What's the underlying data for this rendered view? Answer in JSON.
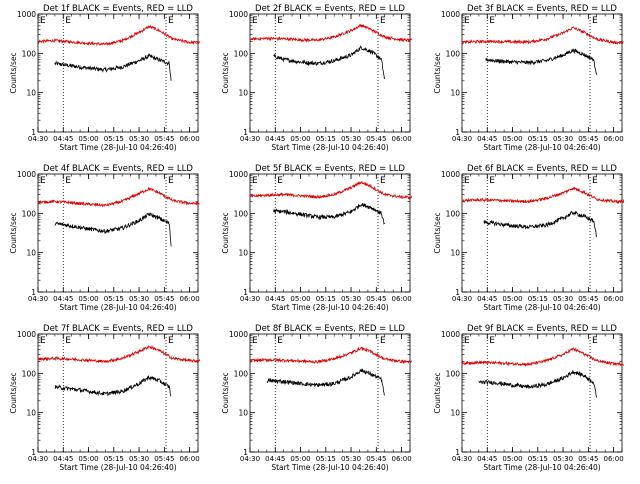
{
  "figure": {
    "colors": {
      "background": "#ffffff",
      "axes": "#000000",
      "events": "#000000",
      "lld": "#dd0000"
    },
    "marker_label": "E"
  },
  "chart_data": [
    {
      "type": "line",
      "title": "Det 1f BLACK = Events, RED = LLD",
      "xlabel": "Start Time (28-Jul-10 04:26:40)",
      "ylabel": "Counts/sec",
      "yscale": "log",
      "ylim": [
        1,
        1000
      ],
      "yticks": [
        1,
        10,
        100,
        1000
      ],
      "xticks": [
        "04:30",
        "04:45",
        "05:00",
        "05:15",
        "05:30",
        "05:45",
        "06:00"
      ],
      "markers": [
        "04:45",
        "05:46"
      ],
      "series": [
        {
          "name": "BLACK = Events",
          "color": "#000000",
          "x": [
            "04:40",
            "04:50",
            "05:00",
            "05:10",
            "05:20",
            "05:30",
            "05:36",
            "05:42",
            "05:48",
            "05:49"
          ],
          "y": [
            55,
            48,
            42,
            38,
            45,
            65,
            85,
            68,
            55,
            20
          ]
        },
        {
          "name": "RED = LLD",
          "color": "#dd0000",
          "x": [
            "04:30",
            "04:40",
            "04:50",
            "05:00",
            "05:10",
            "05:20",
            "05:30",
            "05:36",
            "05:42",
            "05:50",
            "06:00",
            "06:06"
          ],
          "y": [
            200,
            210,
            195,
            180,
            170,
            210,
            340,
            480,
            380,
            230,
            190,
            185
          ]
        }
      ]
    },
    {
      "type": "line",
      "title": "Det 2f BLACK = Events, RED = LLD",
      "xlabel": "Start Time (28-Jul-10 04:26:40)",
      "ylabel": "Counts/sec",
      "yscale": "log",
      "ylim": [
        1,
        1000
      ],
      "yticks": [
        1,
        10,
        100,
        1000
      ],
      "xticks": [
        "04:30",
        "04:45",
        "05:00",
        "05:15",
        "05:30",
        "05:45",
        "06:00"
      ],
      "markers": [
        "04:45",
        "05:46"
      ],
      "series": [
        {
          "name": "BLACK = Events",
          "color": "#000000",
          "x": [
            "04:44",
            "04:50",
            "05:00",
            "05:10",
            "05:20",
            "05:30",
            "05:36",
            "05:42",
            "05:48",
            "05:50"
          ],
          "y": [
            85,
            70,
            60,
            55,
            65,
            90,
            140,
            110,
            70,
            20
          ]
        },
        {
          "name": "RED = LLD",
          "color": "#dd0000",
          "x": [
            "04:30",
            "04:40",
            "04:50",
            "05:00",
            "05:10",
            "05:20",
            "05:30",
            "05:36",
            "05:42",
            "05:50",
            "06:00",
            "06:06"
          ],
          "y": [
            230,
            240,
            235,
            220,
            215,
            260,
            380,
            520,
            400,
            260,
            220,
            215
          ]
        }
      ]
    },
    {
      "type": "line",
      "title": "Det 3f BLACK = Events, RED = LLD",
      "xlabel": "Start Time (28-Jul-10 04:26:40)",
      "ylabel": "Counts/sec",
      "yscale": "log",
      "ylim": [
        1,
        1000
      ],
      "yticks": [
        1,
        10,
        100,
        1000
      ],
      "xticks": [
        "04:30",
        "04:45",
        "05:00",
        "05:15",
        "05:30",
        "05:45",
        "06:00"
      ],
      "markers": [
        "04:45",
        "05:46"
      ],
      "series": [
        {
          "name": "BLACK = Events",
          "color": "#000000",
          "x": [
            "04:44",
            "04:50",
            "05:00",
            "05:10",
            "05:20",
            "05:30",
            "05:36",
            "05:42",
            "05:48",
            "05:50"
          ],
          "y": [
            70,
            65,
            60,
            58,
            65,
            90,
            120,
            95,
            70,
            30
          ]
        },
        {
          "name": "RED = LLD",
          "color": "#dd0000",
          "x": [
            "04:30",
            "04:40",
            "04:50",
            "05:00",
            "05:10",
            "05:20",
            "05:30",
            "05:36",
            "05:42",
            "05:50",
            "06:00",
            "06:06"
          ],
          "y": [
            190,
            200,
            200,
            195,
            195,
            230,
            330,
            450,
            350,
            230,
            190,
            185
          ]
        }
      ]
    },
    {
      "type": "line",
      "title": "Det 4f BLACK = Events, RED = LLD",
      "xlabel": "Start Time (28-Jul-10 04:26:40)",
      "ylabel": "Counts/sec",
      "yscale": "log",
      "ylim": [
        1,
        1000
      ],
      "yticks": [
        1,
        10,
        100,
        1000
      ],
      "xticks": [
        "04:30",
        "04:45",
        "05:00",
        "05:15",
        "05:30",
        "05:45",
        "06:00"
      ],
      "markers": [
        "04:45",
        "05:46"
      ],
      "series": [
        {
          "name": "BLACK = Events",
          "color": "#000000",
          "x": [
            "04:40",
            "04:50",
            "05:00",
            "05:10",
            "05:20",
            "05:30",
            "05:36",
            "05:42",
            "05:48",
            "05:49"
          ],
          "y": [
            55,
            48,
            40,
            35,
            42,
            65,
            95,
            75,
            55,
            15
          ]
        },
        {
          "name": "RED = LLD",
          "color": "#dd0000",
          "x": [
            "04:30",
            "04:40",
            "04:50",
            "05:00",
            "05:10",
            "05:20",
            "05:30",
            "05:36",
            "05:42",
            "05:50",
            "06:00",
            "06:06"
          ],
          "y": [
            190,
            200,
            185,
            170,
            160,
            200,
            320,
            420,
            330,
            210,
            180,
            175
          ]
        }
      ]
    },
    {
      "type": "line",
      "title": "Det 5f BLACK = Events, RED = LLD",
      "xlabel": "Start Time (28-Jul-10 04:26:40)",
      "ylabel": "Counts/sec",
      "yscale": "log",
      "ylim": [
        1,
        1000
      ],
      "yticks": [
        1,
        10,
        100,
        1000
      ],
      "xticks": [
        "04:30",
        "04:45",
        "05:00",
        "05:15",
        "05:30",
        "05:45",
        "06:00"
      ],
      "markers": [
        "04:45",
        "05:46"
      ],
      "series": [
        {
          "name": "BLACK = Events",
          "color": "#000000",
          "x": [
            "04:44",
            "04:50",
            "05:00",
            "05:10",
            "05:20",
            "05:30",
            "05:36",
            "05:42",
            "05:48",
            "05:50"
          ],
          "y": [
            115,
            110,
            95,
            80,
            80,
            110,
            170,
            140,
            100,
            50
          ]
        },
        {
          "name": "RED = LLD",
          "color": "#dd0000",
          "x": [
            "04:30",
            "04:40",
            "04:50",
            "05:00",
            "05:10",
            "05:20",
            "05:30",
            "05:36",
            "05:42",
            "05:50",
            "06:00",
            "06:06"
          ],
          "y": [
            270,
            290,
            300,
            280,
            260,
            300,
            450,
            620,
            480,
            300,
            260,
            255
          ]
        }
      ]
    },
    {
      "type": "line",
      "title": "Det 6f BLACK = Events, RED = LLD",
      "xlabel": "Start Time (28-Jul-10 04:26:40)",
      "ylabel": "Counts/sec",
      "yscale": "log",
      "ylim": [
        1,
        1000
      ],
      "yticks": [
        1,
        10,
        100,
        1000
      ],
      "xticks": [
        "04:30",
        "04:45",
        "05:00",
        "05:15",
        "05:30",
        "05:45",
        "06:00"
      ],
      "markers": [
        "04:45",
        "05:46"
      ],
      "series": [
        {
          "name": "BLACK = Events",
          "color": "#000000",
          "x": [
            "04:43",
            "04:50",
            "05:00",
            "05:10",
            "05:20",
            "05:30",
            "05:36",
            "05:42",
            "05:48",
            "05:50"
          ],
          "y": [
            60,
            55,
            48,
            45,
            50,
            75,
            105,
            85,
            65,
            25
          ]
        },
        {
          "name": "RED = LLD",
          "color": "#dd0000",
          "x": [
            "04:30",
            "04:40",
            "04:50",
            "05:00",
            "05:10",
            "05:20",
            "05:30",
            "05:36",
            "05:42",
            "05:50",
            "06:00",
            "06:06"
          ],
          "y": [
            210,
            220,
            215,
            205,
            200,
            240,
            330,
            440,
            350,
            230,
            200,
            200
          ]
        }
      ]
    },
    {
      "type": "line",
      "title": "Det 7f BLACK = Events, RED = LLD",
      "xlabel": "Start Time (28-Jul-10 04:26:40)",
      "ylabel": "Counts/sec",
      "yscale": "log",
      "ylim": [
        1,
        1000
      ],
      "yticks": [
        1,
        10,
        100,
        1000
      ],
      "xticks": [
        "04:30",
        "04:45",
        "05:00",
        "05:15",
        "05:30",
        "05:45",
        "06:00"
      ],
      "markers": [
        "04:45",
        "05:46"
      ],
      "series": [
        {
          "name": "BLACK = Events",
          "color": "#000000",
          "x": [
            "04:40",
            "04:50",
            "05:00",
            "05:10",
            "05:20",
            "05:30",
            "05:36",
            "05:42",
            "05:48",
            "05:49"
          ],
          "y": [
            45,
            40,
            35,
            30,
            35,
            55,
            80,
            65,
            45,
            25
          ]
        },
        {
          "name": "RED = LLD",
          "color": "#dd0000",
          "x": [
            "04:30",
            "04:40",
            "04:50",
            "05:00",
            "05:10",
            "05:20",
            "05:30",
            "05:36",
            "05:42",
            "05:50",
            "06:00",
            "06:06"
          ],
          "y": [
            230,
            240,
            230,
            215,
            200,
            240,
            360,
            480,
            380,
            240,
            210,
            205
          ]
        }
      ]
    },
    {
      "type": "line",
      "title": "Det 8f BLACK = Events, RED = LLD",
      "xlabel": "Start Time (28-Jul-10 04:26:40)",
      "ylabel": "Counts/sec",
      "yscale": "log",
      "ylim": [
        1,
        1000
      ],
      "yticks": [
        1,
        10,
        100,
        1000
      ],
      "xticks": [
        "04:30",
        "04:45",
        "05:00",
        "05:15",
        "05:30",
        "05:45",
        "06:00"
      ],
      "markers": [
        "04:45",
        "05:46"
      ],
      "series": [
        {
          "name": "BLACK = Events",
          "color": "#000000",
          "x": [
            "04:40",
            "04:50",
            "05:00",
            "05:10",
            "05:20",
            "05:30",
            "05:36",
            "05:42",
            "05:48",
            "05:50"
          ],
          "y": [
            65,
            62,
            55,
            50,
            55,
            80,
            120,
            95,
            70,
            25
          ]
        },
        {
          "name": "RED = LLD",
          "color": "#dd0000",
          "x": [
            "04:30",
            "04:40",
            "04:50",
            "05:00",
            "05:10",
            "05:20",
            "05:30",
            "05:36",
            "05:42",
            "05:50",
            "06:00",
            "06:06"
          ],
          "y": [
            210,
            220,
            215,
            205,
            195,
            235,
            330,
            440,
            350,
            230,
            200,
            195
          ]
        }
      ]
    },
    {
      "type": "line",
      "title": "Det 9f BLACK = Events, RED = LLD",
      "xlabel": "Start Time (28-Jul-10 04:26:40)",
      "ylabel": "Counts/sec",
      "yscale": "log",
      "ylim": [
        1,
        1000
      ],
      "yticks": [
        1,
        10,
        100,
        1000
      ],
      "xticks": [
        "04:30",
        "04:45",
        "05:00",
        "05:15",
        "05:30",
        "05:45",
        "06:00"
      ],
      "markers": [
        "04:45",
        "05:46"
      ],
      "series": [
        {
          "name": "BLACK = Events",
          "color": "#000000",
          "x": [
            "04:40",
            "04:50",
            "05:00",
            "05:10",
            "05:20",
            "05:30",
            "05:36",
            "05:42",
            "05:48",
            "05:50"
          ],
          "y": [
            60,
            58,
            50,
            45,
            52,
            75,
            110,
            90,
            60,
            25
          ]
        },
        {
          "name": "RED = LLD",
          "color": "#dd0000",
          "x": [
            "04:30",
            "04:40",
            "04:50",
            "05:00",
            "05:10",
            "05:20",
            "05:30",
            "05:36",
            "05:42",
            "05:50",
            "06:00",
            "06:06"
          ],
          "y": [
            180,
            190,
            185,
            175,
            170,
            210,
            300,
            420,
            320,
            210,
            175,
            170
          ]
        }
      ]
    }
  ]
}
